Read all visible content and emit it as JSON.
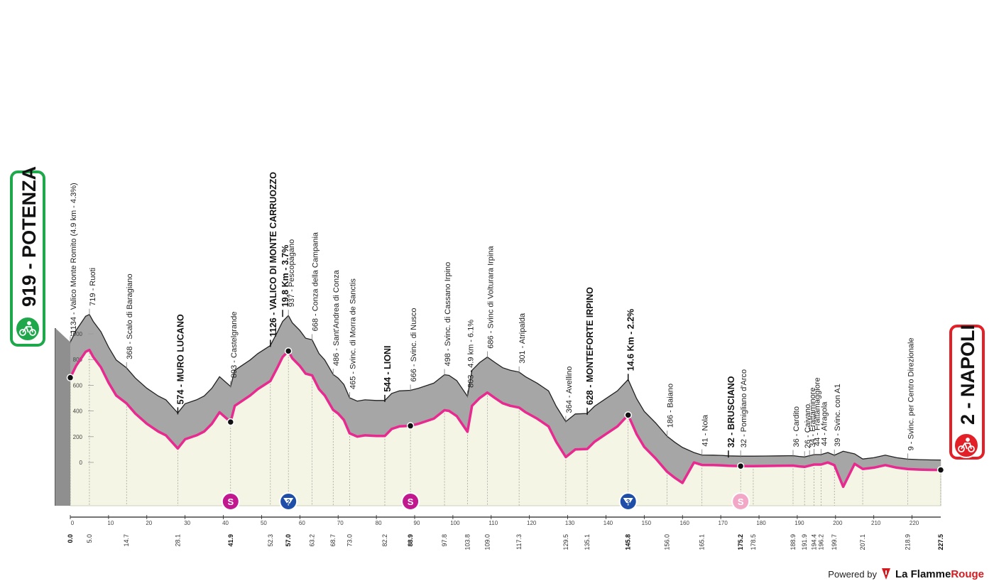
{
  "start": {
    "elevation": "919",
    "name": "POTENZA"
  },
  "finish": {
    "elevation": "2",
    "name": "NAPOLI"
  },
  "chart_data": {
    "type": "area",
    "xlabel": "",
    "ylabel": "",
    "xlim": [
      0,
      227.5
    ],
    "ylim": [
      0,
      1000
    ],
    "yticks": [
      0,
      200,
      400,
      600,
      800,
      1000
    ],
    "xticks": [
      0,
      10,
      20,
      30,
      40,
      50,
      60,
      70,
      80,
      90,
      100,
      110,
      120,
      130,
      140,
      150,
      160,
      170,
      180,
      190,
      200,
      210,
      220
    ],
    "km_markers": [
      {
        "km": "0.0",
        "major": true
      },
      {
        "km": "5.0"
      },
      {
        "km": "14.7"
      },
      {
        "km": "28.1"
      },
      {
        "km": "41.9",
        "major": true
      },
      {
        "km": "52.3"
      },
      {
        "km": "57.0",
        "major": true
      },
      {
        "km": "63.2"
      },
      {
        "km": "68.7"
      },
      {
        "km": "73.0"
      },
      {
        "km": "82.2"
      },
      {
        "km": "88.9",
        "major": true
      },
      {
        "km": "97.8"
      },
      {
        "km": "103.8"
      },
      {
        "km": "109.0"
      },
      {
        "km": "117.3"
      },
      {
        "km": "129.5"
      },
      {
        "km": "135.1"
      },
      {
        "km": "145.8",
        "major": true
      },
      {
        "km": "156.0"
      },
      {
        "km": "165.1"
      },
      {
        "km": "175.2",
        "major": true
      },
      {
        "km": "178.5"
      },
      {
        "km": "188.9"
      },
      {
        "km": "191.9"
      },
      {
        "km": "194.4"
      },
      {
        "km": "196.2"
      },
      {
        "km": "199.7"
      },
      {
        "km": "207.1"
      },
      {
        "km": "218.9"
      },
      {
        "km": "227.5",
        "major": true
      }
    ],
    "profile": [
      [
        0,
        919
      ],
      [
        1.5,
        1010
      ],
      [
        4,
        1120
      ],
      [
        5,
        1134
      ],
      [
        6,
        1080
      ],
      [
        8,
        1000
      ],
      [
        10,
        880
      ],
      [
        12,
        780
      ],
      [
        14.7,
        719
      ],
      [
        17,
        640
      ],
      [
        20,
        560
      ],
      [
        23,
        500
      ],
      [
        25,
        470
      ],
      [
        28.1,
        368
      ],
      [
        30,
        440
      ],
      [
        33,
        470
      ],
      [
        35,
        500
      ],
      [
        37,
        560
      ],
      [
        39,
        650
      ],
      [
        41.9,
        574
      ],
      [
        43,
        700
      ],
      [
        45,
        740
      ],
      [
        47,
        780
      ],
      [
        49,
        830
      ],
      [
        52.3,
        893
      ],
      [
        54,
        990
      ],
      [
        55.5,
        1080
      ],
      [
        57,
        1126
      ],
      [
        58,
        1070
      ],
      [
        60,
        1010
      ],
      [
        61.5,
        950
      ],
      [
        63.2,
        937
      ],
      [
        65,
        830
      ],
      [
        66.5,
        780
      ],
      [
        68.7,
        668
      ],
      [
        70,
        640
      ],
      [
        71.5,
        590
      ],
      [
        73,
        486
      ],
      [
        75,
        460
      ],
      [
        77,
        470
      ],
      [
        80,
        465
      ],
      [
        82.2,
        465
      ],
      [
        84,
        520
      ],
      [
        86,
        540
      ],
      [
        88.9,
        544
      ],
      [
        91,
        560
      ],
      [
        93,
        580
      ],
      [
        95,
        600
      ],
      [
        97.8,
        666
      ],
      [
        99,
        660
      ],
      [
        101,
        620
      ],
      [
        103.8,
        498
      ],
      [
        105,
        700
      ],
      [
        107,
        760
      ],
      [
        109,
        803
      ],
      [
        111,
        760
      ],
      [
        113,
        720
      ],
      [
        115,
        700
      ],
      [
        117.3,
        686
      ],
      [
        119,
        650
      ],
      [
        122,
        600
      ],
      [
        125,
        540
      ],
      [
        127,
        420
      ],
      [
        129.5,
        301
      ],
      [
        132,
        360
      ],
      [
        135.1,
        364
      ],
      [
        137,
        420
      ],
      [
        140,
        480
      ],
      [
        143,
        540
      ],
      [
        145.8,
        628
      ],
      [
        148,
        480
      ],
      [
        150,
        380
      ],
      [
        153,
        290
      ],
      [
        156,
        186
      ],
      [
        158,
        140
      ],
      [
        160,
        100
      ],
      [
        163,
        60
      ],
      [
        165.1,
        41
      ],
      [
        168,
        40
      ],
      [
        170,
        38
      ],
      [
        172,
        34
      ],
      [
        175.2,
        32
      ],
      [
        178.5,
        32
      ],
      [
        182,
        33
      ],
      [
        185,
        34
      ],
      [
        188.9,
        36
      ],
      [
        190.5,
        30
      ],
      [
        191.9,
        26
      ],
      [
        193,
        34
      ],
      [
        194.4,
        44
      ],
      [
        196.2,
        44
      ],
      [
        198,
        60
      ],
      [
        199.7,
        39
      ],
      [
        202,
        70
      ],
      [
        205,
        50
      ],
      [
        207.1,
        10
      ],
      [
        210,
        20
      ],
      [
        213,
        40
      ],
      [
        216,
        20
      ],
      [
        218.9,
        9
      ],
      [
        222,
        5
      ],
      [
        225,
        3
      ],
      [
        227.5,
        2
      ]
    ],
    "points": [
      {
        "km": 0,
        "alt": 919,
        "label": "1134 - Valico Monte Romito (4.9 km - 4.3%)"
      },
      {
        "km": 5,
        "alt": 1134,
        "label": "719 - Ruoti"
      },
      {
        "km": 14.7,
        "alt": 719,
        "label": "368 - Scalo di Baragiano"
      },
      {
        "km": 28.1,
        "alt": 368,
        "label": "574 - MURO LUCANO",
        "major": true
      },
      {
        "km": 41.9,
        "alt": 574,
        "label": "893 - Castelgrande"
      },
      {
        "km": 52.3,
        "alt": 893,
        "label": "1126 - VALICO DI MONTE CARRUOZZO",
        "major": true
      },
      {
        "km": 55.5,
        "alt": 1126,
        "label": "19.8 Km - 3.7%",
        "major": true
      },
      {
        "km": 57,
        "alt": 1126,
        "label": "937 - Pescopagano"
      },
      {
        "km": 63.2,
        "alt": 937,
        "label": "668 - Conza della Campania"
      },
      {
        "km": 68.7,
        "alt": 668,
        "label": "486 - Sant'Andrea di Conza"
      },
      {
        "km": 73,
        "alt": 486,
        "label": "465 - Svinc. di Morra de Sanctis"
      },
      {
        "km": 82.2,
        "alt": 465,
        "label": "544 - LIONI",
        "major": true
      },
      {
        "km": 88.9,
        "alt": 544,
        "label": "666 - Svinc. di Nusco"
      },
      {
        "km": 97.8,
        "alt": 666,
        "label": "498 - Svinc. di Cassano Irpino"
      },
      {
        "km": 103.8,
        "alt": 498,
        "label": "803 - 4.9 km - 6.1%"
      },
      {
        "km": 109,
        "alt": 803,
        "label": "686 - Svinc di Volturara Irpina"
      },
      {
        "km": 117.3,
        "alt": 686,
        "label": "301 - Atripalda"
      },
      {
        "km": 129.5,
        "alt": 301,
        "label": "364 - Avellino"
      },
      {
        "km": 135.1,
        "alt": 364,
        "label": "628 - MONTEFORTE IRPINO",
        "major": true
      },
      {
        "km": 145.8,
        "alt": 628,
        "label": "14.6 Km - 2.2%",
        "major": true
      },
      {
        "km": 156,
        "alt": 186,
        "label": "186 - Baiano"
      },
      {
        "km": 165.1,
        "alt": 41,
        "label": "41 - Nola"
      },
      {
        "km": 172,
        "alt": 32,
        "label": "32 - BRUSCIANO",
        "major": true
      },
      {
        "km": 175.2,
        "alt": 32,
        "label": "32 - Pomigliano d'Arco"
      },
      {
        "km": 188.9,
        "alt": 36,
        "label": "36 - Cardito"
      },
      {
        "km": 191.9,
        "alt": 26,
        "label": "26 - Caivano"
      },
      {
        "km": 193.2,
        "alt": 34,
        "label": "34 - Frattaminore"
      },
      {
        "km": 194.4,
        "alt": 44,
        "label": "44 - Frattamaggiore"
      },
      {
        "km": 196.2,
        "alt": 44,
        "label": "44 - Afragola"
      },
      {
        "km": 199.7,
        "alt": 39,
        "label": "39 - Svinc. con A1"
      },
      {
        "km": 218.9,
        "alt": 9,
        "label": "9 - Svinc. per Centro Direzionale"
      }
    ],
    "sprints": [
      {
        "km": 41.9,
        "type": "intermediate",
        "letter": "S",
        "color": "#c2188f"
      },
      {
        "km": 57.0,
        "type": "climb",
        "letter": "2",
        "color": "#1f4ea8"
      },
      {
        "km": 88.9,
        "type": "intermediate",
        "letter": "S",
        "color": "#c2188f"
      },
      {
        "km": 145.8,
        "type": "climb",
        "letter": "3",
        "color": "#1f4ea8"
      },
      {
        "km": 175.2,
        "type": "intermediate",
        "letter": "S",
        "color": "#f2a7c6"
      }
    ],
    "colors": {
      "profile_fill": "#f4f5e4",
      "relief_fill": "#a6a6a6",
      "route_line": "#e8298f",
      "start_badge": "#1ea84b",
      "finish_badge": "#e32027"
    }
  },
  "footer": {
    "powered_by": "Powered by",
    "brand_a": "La Flamme",
    "brand_b": "Rouge"
  }
}
